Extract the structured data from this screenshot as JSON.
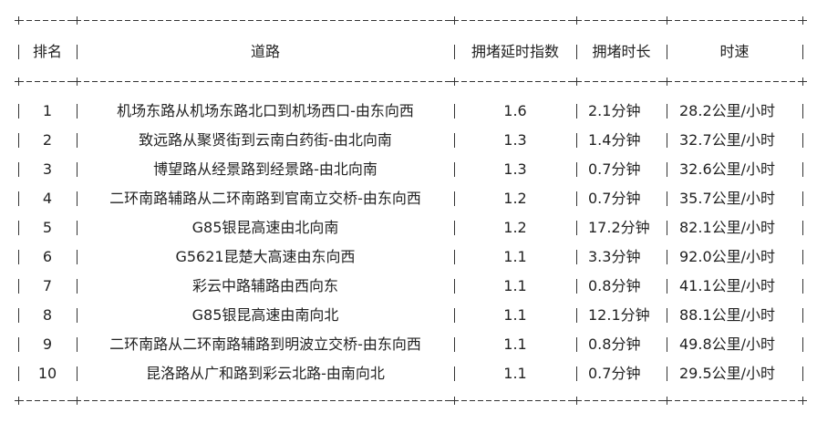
{
  "headers": [
    "排名",
    "道路",
    "拥堵延时指数",
    "拥堵时长",
    "时速"
  ],
  "rows": [
    {
      "rank": "1",
      "road": "机场东路从机场东路北口到机场西口-由东向西",
      "index": "1.6",
      "duration": "2.1分钟",
      "speed": "28.2公里/小时"
    },
    {
      "rank": "2",
      "road": "致远路从聚贤街到云南白药街-由北向南",
      "index": "1.3",
      "duration": "1.4分钟",
      "speed": "32.7公里/小时"
    },
    {
      "rank": "3",
      "road": "博望路从经景路到经景路-由北向南",
      "index": "1.3",
      "duration": "0.7分钟",
      "speed": "32.6公里/小时"
    },
    {
      "rank": "4",
      "road": "二环南路辅路从二环南路到官南立交桥-由东向西",
      "index": "1.2",
      "duration": "0.7分钟",
      "speed": "35.7公里/小时"
    },
    {
      "rank": "5",
      "road": "G85银昆高速由北向南",
      "index": "1.2",
      "duration": "17.2分钟",
      "speed": "82.1公里/小时"
    },
    {
      "rank": "6",
      "road": "G5621昆楚大高速由东向西",
      "index": "1.1",
      "duration": "3.3分钟",
      "speed": "92.0公里/小时"
    },
    {
      "rank": "7",
      "road": "彩云中路辅路由西向东",
      "index": "1.1",
      "duration": "0.8分钟",
      "speed": "41.1公里/小时"
    },
    {
      "rank": "8",
      "road": "G85银昆高速由南向北",
      "index": "1.1",
      "duration": "12.1分钟",
      "speed": "88.1公里/小时"
    },
    {
      "rank": "9",
      "road": "二环南路从二环南路辅路到明波立交桥-由东向西",
      "index": "1.1",
      "duration": "0.8分钟",
      "speed": "49.8公里/小时"
    },
    {
      "rank": "10",
      "road": "昆洛路从广和路到彩云北路-由南向北",
      "index": "1.1",
      "duration": "0.7分钟",
      "speed": "29.5公里/小时"
    }
  ]
}
